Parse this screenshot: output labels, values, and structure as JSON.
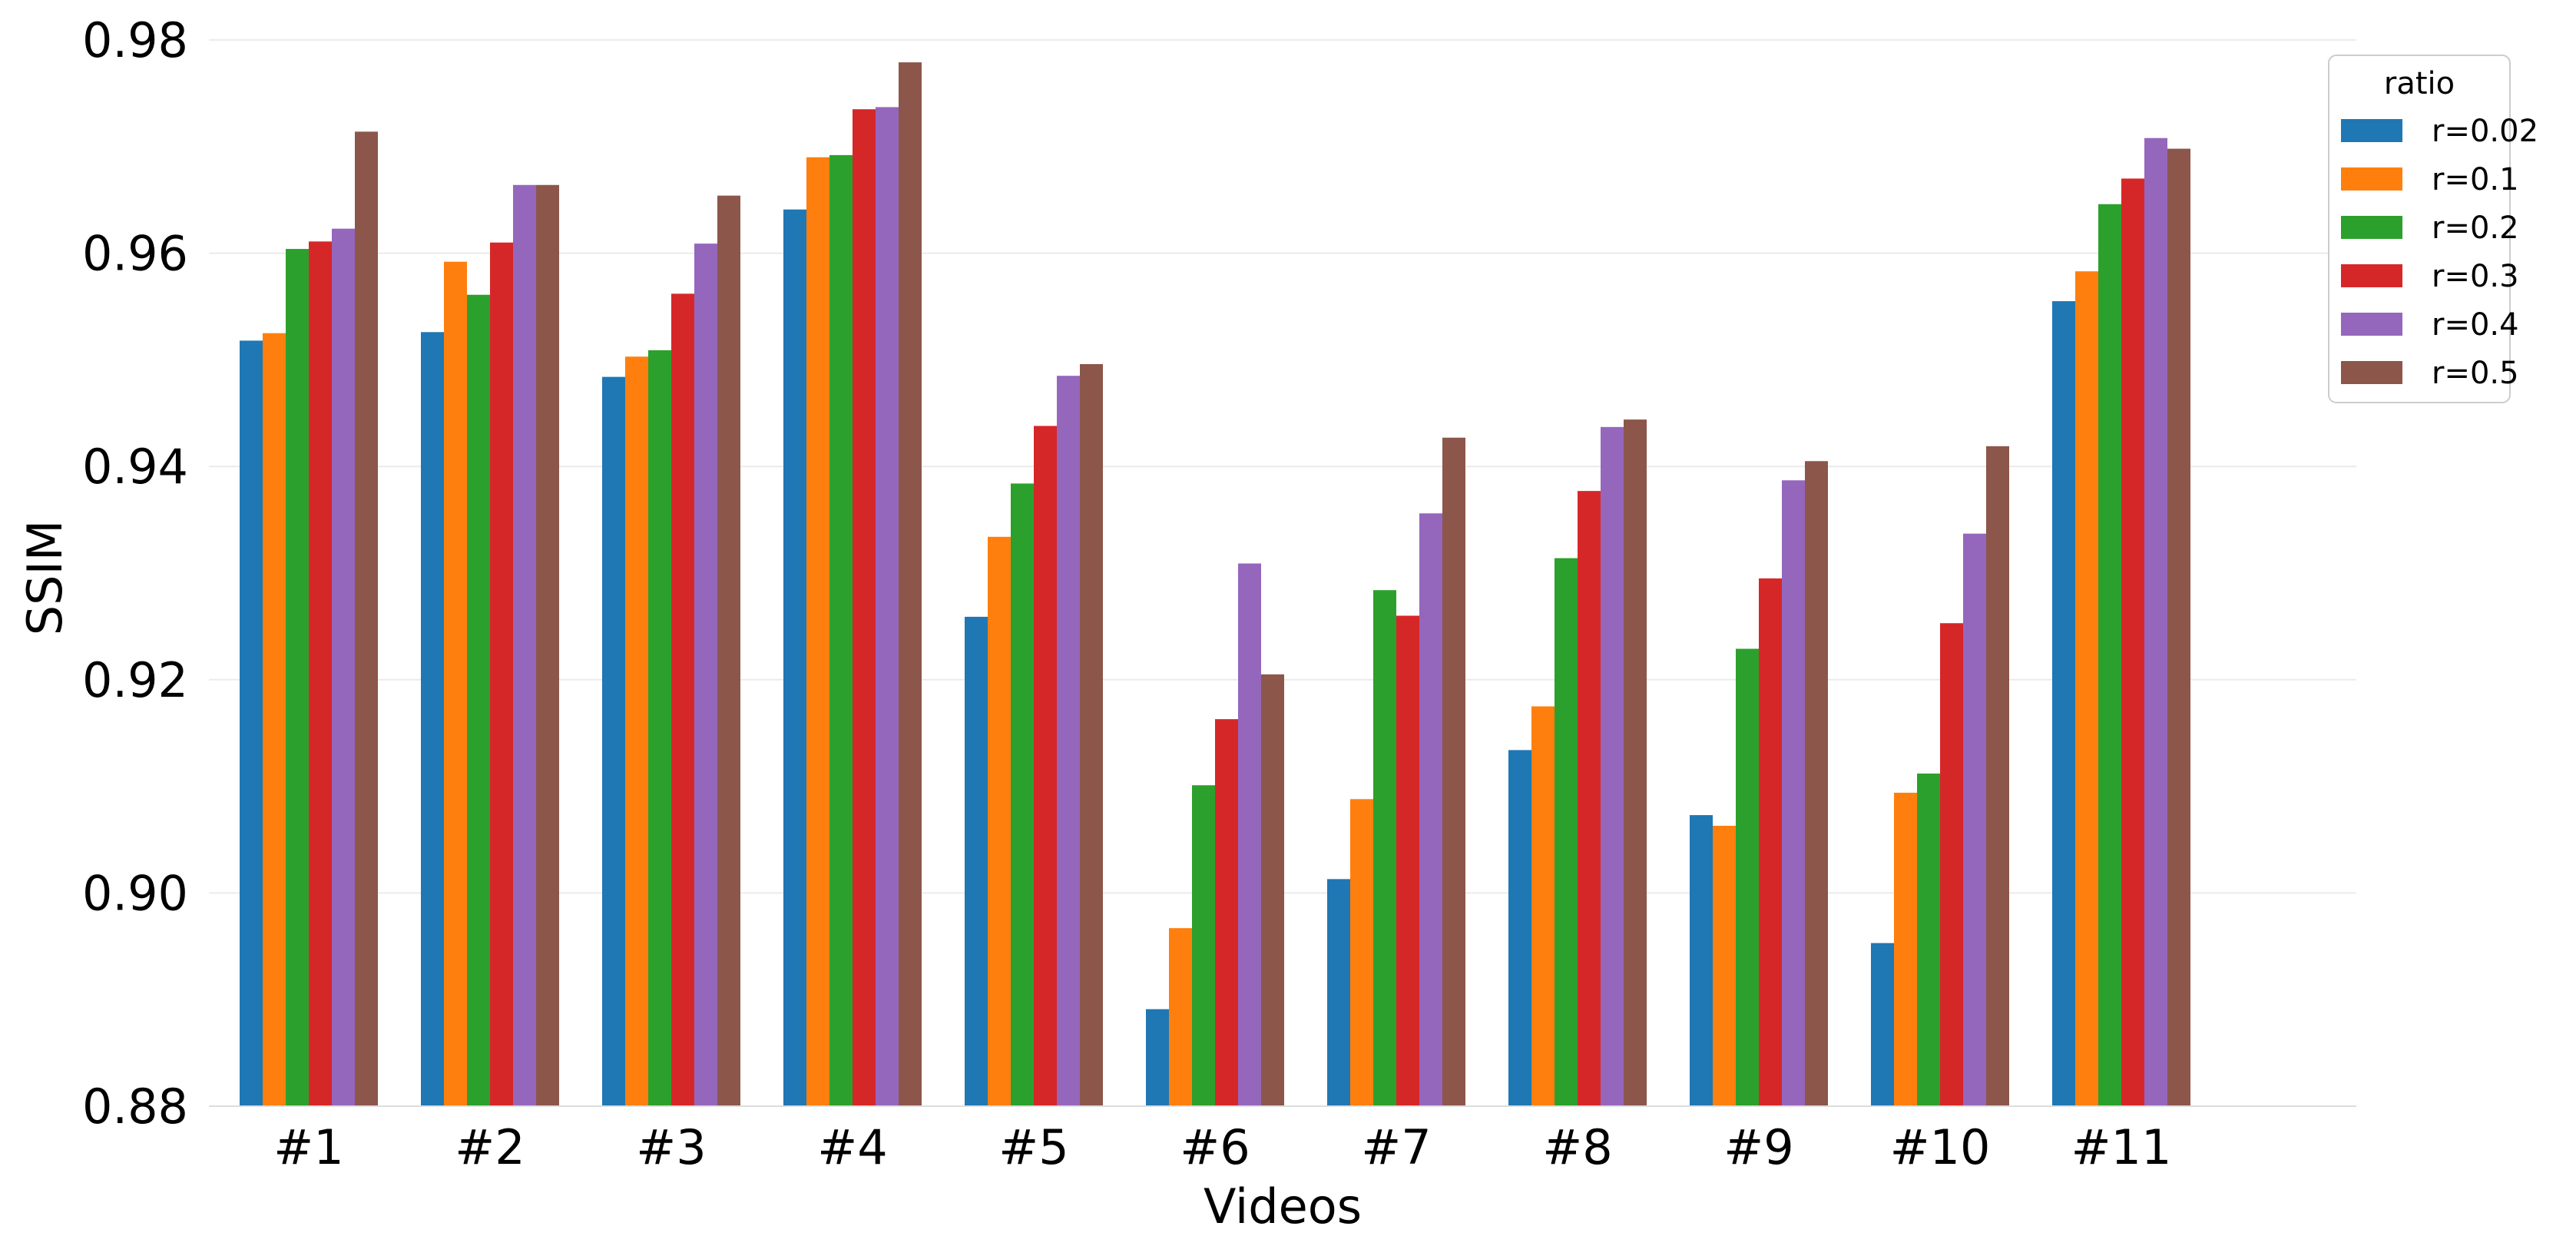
{
  "chart_data": {
    "type": "bar",
    "title": "",
    "xlabel": "Videos",
    "ylabel": "SSIM",
    "ylim": [
      0.88,
      0.98
    ],
    "yticks": [
      "0.88",
      "0.90",
      "0.92",
      "0.94",
      "0.96",
      "0.98"
    ],
    "categories": [
      "#1",
      "#2",
      "#3",
      "#4",
      "#5",
      "#6",
      "#7",
      "#8",
      "#9",
      "#10",
      "#11"
    ],
    "grid": "horizontal",
    "legend": {
      "title": "ratio",
      "position": "top-right"
    },
    "series": [
      {
        "name": "r=0.02",
        "color": "#1f77b4",
        "values": [
          0.9518,
          0.9526,
          0.9484,
          0.9641,
          0.9259,
          0.8891,
          0.9013,
          0.9134,
          0.9073,
          0.8953,
          0.9555
        ]
      },
      {
        "name": "r=0.1",
        "color": "#ff7f0e",
        "values": [
          0.9525,
          0.9592,
          0.9503,
          0.969,
          0.9334,
          0.8967,
          0.9088,
          0.9175,
          0.9063,
          0.9094,
          0.9583
        ]
      },
      {
        "name": "r=0.2",
        "color": "#2ca02c",
        "values": [
          0.9604,
          0.9561,
          0.9509,
          0.9692,
          0.9384,
          0.9101,
          0.9284,
          0.9314,
          0.9229,
          0.9112,
          0.9646
        ]
      },
      {
        "name": "r=0.3",
        "color": "#d62728",
        "values": [
          0.9611,
          0.961,
          0.9562,
          0.9735,
          0.9438,
          0.9163,
          0.926,
          0.9377,
          0.9295,
          0.9253,
          0.967
        ]
      },
      {
        "name": "r=0.4",
        "color": "#9467bd",
        "values": [
          0.9623,
          0.9664,
          0.9609,
          0.9737,
          0.9485,
          0.9309,
          0.9356,
          0.9437,
          0.9387,
          0.9337,
          0.9708
        ]
      },
      {
        "name": "r=0.5",
        "color": "#8c564b",
        "values": [
          0.9714,
          0.9664,
          0.9654,
          0.9779,
          0.9496,
          0.9205,
          0.9427,
          0.9444,
          0.9405,
          0.9419,
          0.9698
        ]
      }
    ]
  }
}
